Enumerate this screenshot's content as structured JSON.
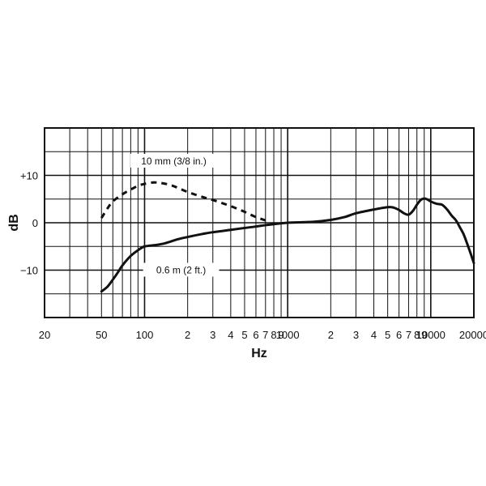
{
  "chart_data": {
    "type": "line",
    "title": "",
    "xlabel": "Hz",
    "ylabel": "dB",
    "x_scale": "log",
    "xlim": [
      20,
      20000
    ],
    "ylim": [
      -20,
      20
    ],
    "grid": true,
    "x_tick_labels": [
      {
        "x": 20,
        "label": "20"
      },
      {
        "x": 50,
        "label": "50"
      },
      {
        "x": 100,
        "label": "100"
      },
      {
        "x": 200,
        "label": "2"
      },
      {
        "x": 300,
        "label": "3"
      },
      {
        "x": 400,
        "label": "4"
      },
      {
        "x": 500,
        "label": "5"
      },
      {
        "x": 600,
        "label": "6"
      },
      {
        "x": 700,
        "label": "7"
      },
      {
        "x": 800,
        "label": "8"
      },
      {
        "x": 900,
        "label": "9"
      },
      {
        "x": 1000,
        "label": "1000"
      },
      {
        "x": 2000,
        "label": "2"
      },
      {
        "x": 3000,
        "label": "3"
      },
      {
        "x": 4000,
        "label": "4"
      },
      {
        "x": 5000,
        "label": "5"
      },
      {
        "x": 6000,
        "label": "6"
      },
      {
        "x": 7000,
        "label": "7"
      },
      {
        "x": 8000,
        "label": "8"
      },
      {
        "x": 9000,
        "label": "9"
      },
      {
        "x": 10000,
        "label": "10000"
      },
      {
        "x": 20000,
        "label": "20000"
      }
    ],
    "y_tick_labels": [
      {
        "y": 10,
        "label": "+10"
      },
      {
        "y": 0,
        "label": "0"
      },
      {
        "y": -10,
        "label": "−10"
      }
    ],
    "series": [
      {
        "name": "10 mm (3/8 in.)",
        "style": "dashed",
        "color": "#111111",
        "points": [
          [
            50,
            1
          ],
          [
            55,
            3
          ],
          [
            60,
            4.5
          ],
          [
            70,
            6
          ],
          [
            80,
            7
          ],
          [
            90,
            7.8
          ],
          [
            100,
            8.2
          ],
          [
            115,
            8.5
          ],
          [
            130,
            8.4
          ],
          [
            150,
            8
          ],
          [
            170,
            7.4
          ],
          [
            200,
            6.5
          ],
          [
            250,
            5.5
          ],
          [
            300,
            4.8
          ],
          [
            400,
            3.5
          ],
          [
            500,
            2.3
          ],
          [
            600,
            1.2
          ],
          [
            700,
            0.5
          ]
        ]
      },
      {
        "name": "0.6 m (2 ft.)",
        "style": "solid",
        "color": "#111111",
        "points": [
          [
            50,
            -14.5
          ],
          [
            55,
            -13.5
          ],
          [
            60,
            -12
          ],
          [
            65,
            -10.5
          ],
          [
            70,
            -9
          ],
          [
            80,
            -7
          ],
          [
            90,
            -5.8
          ],
          [
            100,
            -5
          ],
          [
            120,
            -4.7
          ],
          [
            140,
            -4.3
          ],
          [
            170,
            -3.5
          ],
          [
            200,
            -3
          ],
          [
            250,
            -2.4
          ],
          [
            300,
            -2
          ],
          [
            400,
            -1.5
          ],
          [
            500,
            -1.1
          ],
          [
            600,
            -0.8
          ],
          [
            700,
            -0.5
          ],
          [
            800,
            -0.3
          ],
          [
            1000,
            0
          ],
          [
            1500,
            0.2
          ],
          [
            2000,
            0.6
          ],
          [
            2500,
            1.2
          ],
          [
            3000,
            2
          ],
          [
            4000,
            2.8
          ],
          [
            5000,
            3.3
          ],
          [
            5500,
            3.2
          ],
          [
            6000,
            2.7
          ],
          [
            6500,
            2
          ],
          [
            7000,
            1.7
          ],
          [
            7500,
            2.5
          ],
          [
            8000,
            3.8
          ],
          [
            8500,
            4.8
          ],
          [
            9000,
            5.1
          ],
          [
            9500,
            4.9
          ],
          [
            10000,
            4.5
          ],
          [
            11000,
            4
          ],
          [
            12000,
            3.8
          ],
          [
            13000,
            2.8
          ],
          [
            14000,
            1.5
          ],
          [
            15000,
            0.5
          ],
          [
            16000,
            -1
          ],
          [
            17000,
            -2.5
          ],
          [
            18000,
            -4.5
          ],
          [
            19000,
            -6.5
          ],
          [
            20000,
            -8.5
          ]
        ]
      }
    ],
    "annotations": [
      {
        "text": "10 mm (3/8 in.)",
        "x": 160,
        "y": 13
      },
      {
        "text": "0.6 m (2 ft.)",
        "x": 180,
        "y": -10
      }
    ]
  }
}
